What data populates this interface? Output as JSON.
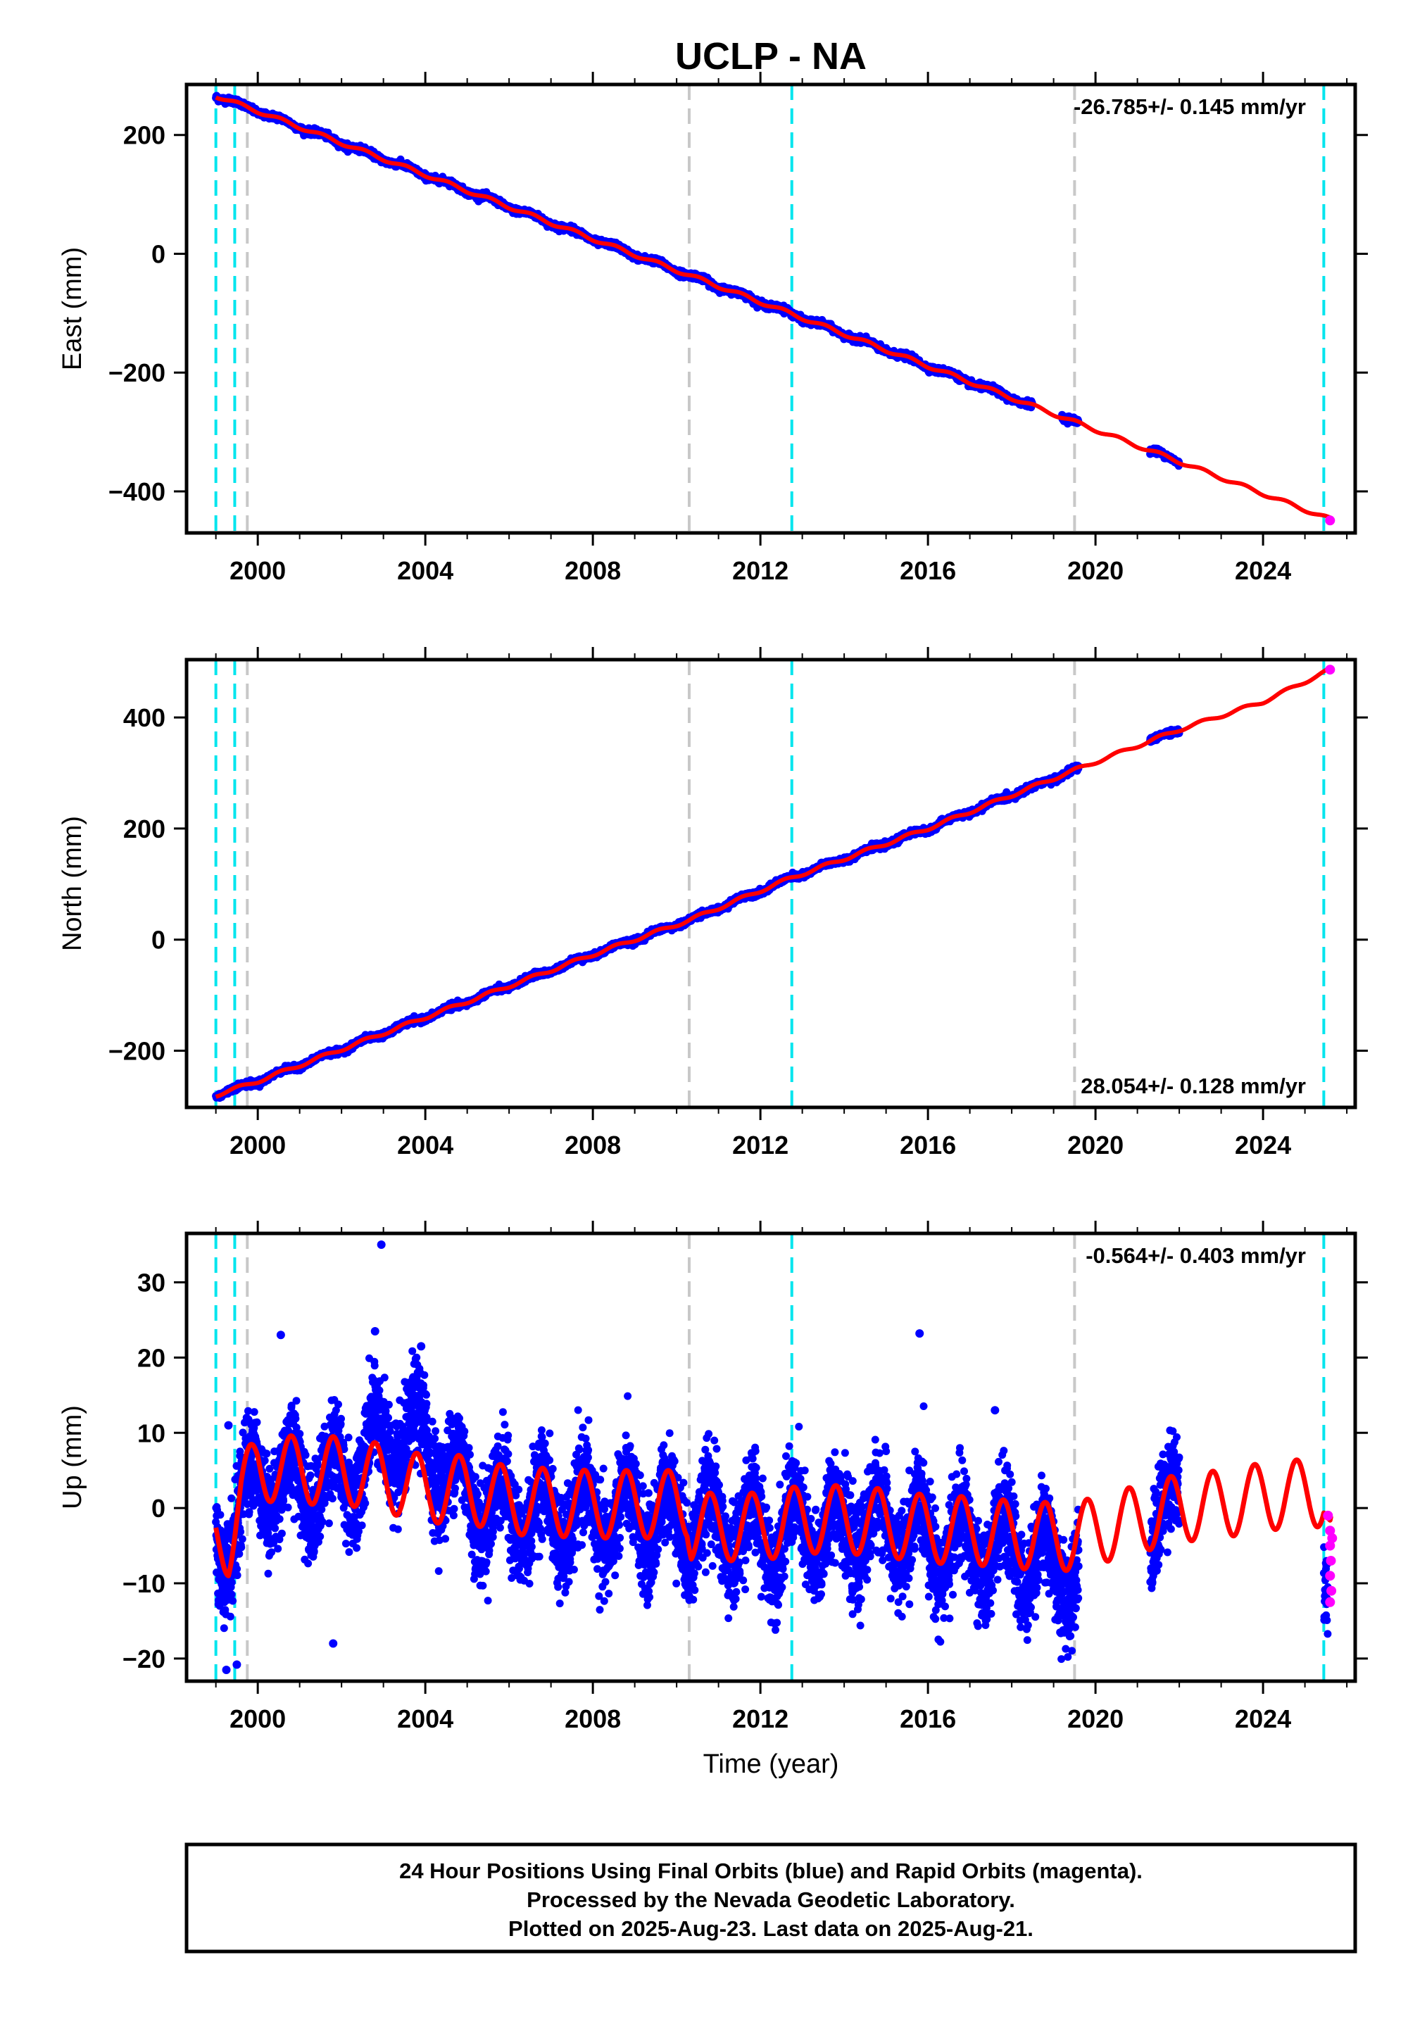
{
  "title": "UCLP - NA",
  "footer": {
    "line1": "24 Hour Positions Using Final Orbits (blue) and Rapid Orbits (magenta).",
    "line2": "Processed by the Nevada Geodetic Laboratory.",
    "line3": "Plotted on 2025-Aug-23. Last data on 2025-Aug-21."
  },
  "colors": {
    "final_orbits": "#0000ff",
    "rapid_orbits": "#ff00ff",
    "model": "#ff0000",
    "equipment_change": "#00e5ee",
    "earthquake": "#c8c8c8"
  },
  "chart_data": [
    {
      "type": "scatter",
      "name": "east",
      "ylabel": "East (mm)",
      "xlabel": "",
      "xlim": [
        1998.3,
        2026.2
      ],
      "ylim": [
        -470,
        285
      ],
      "xticks": [
        2000,
        2004,
        2008,
        2012,
        2016,
        2020,
        2024
      ],
      "yticks": [
        -400,
        -200,
        0,
        200
      ],
      "rate_label": "-26.785+/- 0.145 mm/yr",
      "rate_position": "top-right",
      "rate": -26.785,
      "model_points": [
        [
          1999.0,
          266
        ],
        [
          2000.0,
          240
        ],
        [
          2004.0,
          133
        ],
        [
          2008.0,
          25
        ],
        [
          2010.3,
          -36
        ],
        [
          2012.7,
          -100
        ],
        [
          2016.0,
          -189
        ],
        [
          2019.5,
          -283
        ],
        [
          2022.0,
          -350
        ],
        [
          2024.0,
          -404
        ],
        [
          2025.6,
          -447
        ]
      ],
      "final_series_span": {
        "start": 1999.0,
        "end": 2022.0,
        "gaps": [
          [
            2018.5,
            2019.2
          ],
          [
            2019.6,
            2021.3
          ]
        ]
      },
      "rapid_points": [
        [
          2025.6,
          -449
        ]
      ],
      "scatter_mm": 2.5,
      "seasonal_amp_mm": 3,
      "equipment_changes": [
        1999.0,
        1999.45,
        2012.75,
        2025.45
      ],
      "earthquakes": [
        1999.75,
        2010.3,
        2019.5
      ]
    },
    {
      "type": "scatter",
      "name": "north",
      "ylabel": "North (mm)",
      "xlabel": "",
      "xlim": [
        1998.3,
        2026.2
      ],
      "ylim": [
        -302,
        504
      ],
      "xticks": [
        2000,
        2004,
        2008,
        2012,
        2016,
        2020,
        2024
      ],
      "yticks": [
        -200,
        0,
        200,
        400
      ],
      "rate_label": "28.054+/- 0.128 mm/yr",
      "rate_position": "bottom-right",
      "rate": 28.054,
      "model_points": [
        [
          1999.0,
          -280
        ],
        [
          2000.0,
          -255
        ],
        [
          2004.0,
          -140
        ],
        [
          2008.0,
          -27
        ],
        [
          2010.3,
          35
        ],
        [
          2012.7,
          110
        ],
        [
          2016.0,
          200
        ],
        [
          2019.5,
          305
        ],
        [
          2022.0,
          378
        ],
        [
          2024.0,
          428
        ],
        [
          2025.6,
          486
        ]
      ],
      "final_series_span": {
        "start": 1999.0,
        "end": 2022.0,
        "gaps": [
          [
            2019.6,
            2021.3
          ]
        ]
      },
      "rapid_points": [
        [
          2025.6,
          486
        ]
      ],
      "scatter_mm": 2.5,
      "seasonal_amp_mm": 3,
      "equipment_changes": [
        1999.0,
        1999.45,
        2012.75,
        2025.45
      ],
      "earthquakes": [
        1999.75,
        2010.3,
        2019.5
      ]
    },
    {
      "type": "scatter",
      "name": "up",
      "ylabel": "Up (mm)",
      "xlabel": "Time (year)",
      "xlim": [
        1998.3,
        2026.2
      ],
      "ylim": [
        -23,
        36.5
      ],
      "xticks": [
        2000,
        2004,
        2008,
        2012,
        2016,
        2020,
        2024
      ],
      "yticks": [
        -20,
        -10,
        0,
        10,
        20,
        30
      ],
      "rate_label": "-0.564+/- 0.403 mm/yr",
      "rate_position": "top-right",
      "rate": -0.564,
      "seasonal_amp_mm": 4.5,
      "model_baseline": [
        [
          1999.0,
          -4
        ],
        [
          1999.3,
          -4.5
        ],
        [
          1999.6,
          2
        ],
        [
          2000.0,
          5.5
        ],
        [
          2001.0,
          5
        ],
        [
          2002.0,
          5
        ],
        [
          2003.0,
          4
        ],
        [
          2004.0,
          2.5
        ],
        [
          2005.0,
          2.5
        ],
        [
          2006.0,
          1
        ],
        [
          2008.0,
          0.5
        ],
        [
          2010.25,
          0.5
        ],
        [
          2010.35,
          -2.5
        ],
        [
          2012.0,
          -2.5
        ],
        [
          2013.0,
          -1.5
        ],
        [
          2014.0,
          -1.5
        ],
        [
          2015.0,
          -2
        ],
        [
          2016.0,
          -2.8
        ],
        [
          2017.0,
          -3
        ],
        [
          2018.0,
          -3.5
        ],
        [
          2019.0,
          -3.8
        ],
        [
          2019.5,
          -3.8
        ],
        [
          2020.0,
          -3
        ],
        [
          2021.0,
          -1.5
        ],
        [
          2022.0,
          0
        ],
        [
          2023.0,
          0.5
        ],
        [
          2024.0,
          1.5
        ],
        [
          2025.0,
          2
        ],
        [
          2025.45,
          2
        ],
        [
          2025.6,
          -3
        ]
      ],
      "data_baseline": [
        [
          1999.0,
          -7
        ],
        [
          1999.5,
          -1
        ],
        [
          2000.0,
          4
        ],
        [
          2001.0,
          3
        ],
        [
          2002.0,
          4
        ],
        [
          2003.0,
          9
        ],
        [
          2004.0,
          9
        ],
        [
          2004.7,
          4
        ],
        [
          2005.5,
          0
        ],
        [
          2007.0,
          -1
        ],
        [
          2009.0,
          -1
        ],
        [
          2010.3,
          -2
        ],
        [
          2012.0,
          -3.5
        ],
        [
          2013.0,
          -3
        ],
        [
          2014.0,
          -3
        ],
        [
          2015.0,
          -2.5
        ],
        [
          2016.0,
          -4
        ],
        [
          2017.0,
          -5.5
        ],
        [
          2018.0,
          -5
        ],
        [
          2019.0,
          -8
        ],
        [
          2019.6,
          -8
        ],
        [
          2021.3,
          -1
        ],
        [
          2022.0,
          0
        ],
        [
          2025.5,
          -9
        ],
        [
          2025.65,
          -7
        ]
      ],
      "final_series_span": {
        "start": 1999.0,
        "end": 2022.0,
        "gaps": [
          [
            2019.6,
            2021.3
          ]
        ]
      },
      "scatter_mm": 3.2,
      "outliers": [
        [
          2002.95,
          35
        ],
        [
          2002.8,
          23.5
        ],
        [
          2001.8,
          -18
        ],
        [
          2000.55,
          23
        ],
        [
          2015.8,
          23.2
        ],
        [
          2017.6,
          13
        ],
        [
          1999.25,
          -21.5
        ],
        [
          1999.5,
          -20.8
        ],
        [
          2003.9,
          21.5
        ],
        [
          1999.3,
          11
        ]
      ],
      "rapid_points": [
        [
          2025.55,
          -1
        ],
        [
          2025.6,
          -3
        ],
        [
          2025.6,
          -5
        ],
        [
          2025.62,
          -7
        ],
        [
          2025.6,
          -9
        ],
        [
          2025.63,
          -11
        ],
        [
          2025.6,
          -12.5
        ],
        [
          2025.65,
          -4
        ]
      ],
      "equipment_changes": [
        1999.0,
        1999.45,
        2012.75,
        2025.45
      ],
      "earthquakes": [
        1999.75,
        2010.3,
        2019.5
      ]
    }
  ]
}
